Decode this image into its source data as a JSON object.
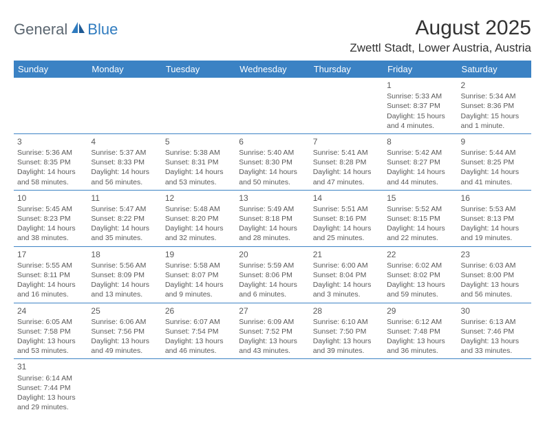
{
  "logo": {
    "text1": "General",
    "text2": "Blue"
  },
  "title": "August 2025",
  "location": "Zwettl Stadt, Lower Austria, Austria",
  "colors": {
    "header_bg": "#3b82c4",
    "header_fg": "#ffffff",
    "border": "#3b82c4",
    "text": "#595959",
    "logo_gray": "#5b6670",
    "logo_blue": "#2f7bbf",
    "page_bg": "#ffffff"
  },
  "weekdays": [
    "Sunday",
    "Monday",
    "Tuesday",
    "Wednesday",
    "Thursday",
    "Friday",
    "Saturday"
  ],
  "days": {
    "1": {
      "sunrise": "Sunrise: 5:33 AM",
      "sunset": "Sunset: 8:37 PM",
      "day1": "Daylight: 15 hours",
      "day2": "and 4 minutes."
    },
    "2": {
      "sunrise": "Sunrise: 5:34 AM",
      "sunset": "Sunset: 8:36 PM",
      "day1": "Daylight: 15 hours",
      "day2": "and 1 minute."
    },
    "3": {
      "sunrise": "Sunrise: 5:36 AM",
      "sunset": "Sunset: 8:35 PM",
      "day1": "Daylight: 14 hours",
      "day2": "and 58 minutes."
    },
    "4": {
      "sunrise": "Sunrise: 5:37 AM",
      "sunset": "Sunset: 8:33 PM",
      "day1": "Daylight: 14 hours",
      "day2": "and 56 minutes."
    },
    "5": {
      "sunrise": "Sunrise: 5:38 AM",
      "sunset": "Sunset: 8:31 PM",
      "day1": "Daylight: 14 hours",
      "day2": "and 53 minutes."
    },
    "6": {
      "sunrise": "Sunrise: 5:40 AM",
      "sunset": "Sunset: 8:30 PM",
      "day1": "Daylight: 14 hours",
      "day2": "and 50 minutes."
    },
    "7": {
      "sunrise": "Sunrise: 5:41 AM",
      "sunset": "Sunset: 8:28 PM",
      "day1": "Daylight: 14 hours",
      "day2": "and 47 minutes."
    },
    "8": {
      "sunrise": "Sunrise: 5:42 AM",
      "sunset": "Sunset: 8:27 PM",
      "day1": "Daylight: 14 hours",
      "day2": "and 44 minutes."
    },
    "9": {
      "sunrise": "Sunrise: 5:44 AM",
      "sunset": "Sunset: 8:25 PM",
      "day1": "Daylight: 14 hours",
      "day2": "and 41 minutes."
    },
    "10": {
      "sunrise": "Sunrise: 5:45 AM",
      "sunset": "Sunset: 8:23 PM",
      "day1": "Daylight: 14 hours",
      "day2": "and 38 minutes."
    },
    "11": {
      "sunrise": "Sunrise: 5:47 AM",
      "sunset": "Sunset: 8:22 PM",
      "day1": "Daylight: 14 hours",
      "day2": "and 35 minutes."
    },
    "12": {
      "sunrise": "Sunrise: 5:48 AM",
      "sunset": "Sunset: 8:20 PM",
      "day1": "Daylight: 14 hours",
      "day2": "and 32 minutes."
    },
    "13": {
      "sunrise": "Sunrise: 5:49 AM",
      "sunset": "Sunset: 8:18 PM",
      "day1": "Daylight: 14 hours",
      "day2": "and 28 minutes."
    },
    "14": {
      "sunrise": "Sunrise: 5:51 AM",
      "sunset": "Sunset: 8:16 PM",
      "day1": "Daylight: 14 hours",
      "day2": "and 25 minutes."
    },
    "15": {
      "sunrise": "Sunrise: 5:52 AM",
      "sunset": "Sunset: 8:15 PM",
      "day1": "Daylight: 14 hours",
      "day2": "and 22 minutes."
    },
    "16": {
      "sunrise": "Sunrise: 5:53 AM",
      "sunset": "Sunset: 8:13 PM",
      "day1": "Daylight: 14 hours",
      "day2": "and 19 minutes."
    },
    "17": {
      "sunrise": "Sunrise: 5:55 AM",
      "sunset": "Sunset: 8:11 PM",
      "day1": "Daylight: 14 hours",
      "day2": "and 16 minutes."
    },
    "18": {
      "sunrise": "Sunrise: 5:56 AM",
      "sunset": "Sunset: 8:09 PM",
      "day1": "Daylight: 14 hours",
      "day2": "and 13 minutes."
    },
    "19": {
      "sunrise": "Sunrise: 5:58 AM",
      "sunset": "Sunset: 8:07 PM",
      "day1": "Daylight: 14 hours",
      "day2": "and 9 minutes."
    },
    "20": {
      "sunrise": "Sunrise: 5:59 AM",
      "sunset": "Sunset: 8:06 PM",
      "day1": "Daylight: 14 hours",
      "day2": "and 6 minutes."
    },
    "21": {
      "sunrise": "Sunrise: 6:00 AM",
      "sunset": "Sunset: 8:04 PM",
      "day1": "Daylight: 14 hours",
      "day2": "and 3 minutes."
    },
    "22": {
      "sunrise": "Sunrise: 6:02 AM",
      "sunset": "Sunset: 8:02 PM",
      "day1": "Daylight: 13 hours",
      "day2": "and 59 minutes."
    },
    "23": {
      "sunrise": "Sunrise: 6:03 AM",
      "sunset": "Sunset: 8:00 PM",
      "day1": "Daylight: 13 hours",
      "day2": "and 56 minutes."
    },
    "24": {
      "sunrise": "Sunrise: 6:05 AM",
      "sunset": "Sunset: 7:58 PM",
      "day1": "Daylight: 13 hours",
      "day2": "and 53 minutes."
    },
    "25": {
      "sunrise": "Sunrise: 6:06 AM",
      "sunset": "Sunset: 7:56 PM",
      "day1": "Daylight: 13 hours",
      "day2": "and 49 minutes."
    },
    "26": {
      "sunrise": "Sunrise: 6:07 AM",
      "sunset": "Sunset: 7:54 PM",
      "day1": "Daylight: 13 hours",
      "day2": "and 46 minutes."
    },
    "27": {
      "sunrise": "Sunrise: 6:09 AM",
      "sunset": "Sunset: 7:52 PM",
      "day1": "Daylight: 13 hours",
      "day2": "and 43 minutes."
    },
    "28": {
      "sunrise": "Sunrise: 6:10 AM",
      "sunset": "Sunset: 7:50 PM",
      "day1": "Daylight: 13 hours",
      "day2": "and 39 minutes."
    },
    "29": {
      "sunrise": "Sunrise: 6:12 AM",
      "sunset": "Sunset: 7:48 PM",
      "day1": "Daylight: 13 hours",
      "day2": "and 36 minutes."
    },
    "30": {
      "sunrise": "Sunrise: 6:13 AM",
      "sunset": "Sunset: 7:46 PM",
      "day1": "Daylight: 13 hours",
      "day2": "and 33 minutes."
    },
    "31": {
      "sunrise": "Sunrise: 6:14 AM",
      "sunset": "Sunset: 7:44 PM",
      "day1": "Daylight: 13 hours",
      "day2": "and 29 minutes."
    }
  },
  "grid": [
    [
      null,
      null,
      null,
      null,
      null,
      "1",
      "2"
    ],
    [
      "3",
      "4",
      "5",
      "6",
      "7",
      "8",
      "9"
    ],
    [
      "10",
      "11",
      "12",
      "13",
      "14",
      "15",
      "16"
    ],
    [
      "17",
      "18",
      "19",
      "20",
      "21",
      "22",
      "23"
    ],
    [
      "24",
      "25",
      "26",
      "27",
      "28",
      "29",
      "30"
    ],
    [
      "31",
      null,
      null,
      null,
      null,
      null,
      null
    ]
  ]
}
